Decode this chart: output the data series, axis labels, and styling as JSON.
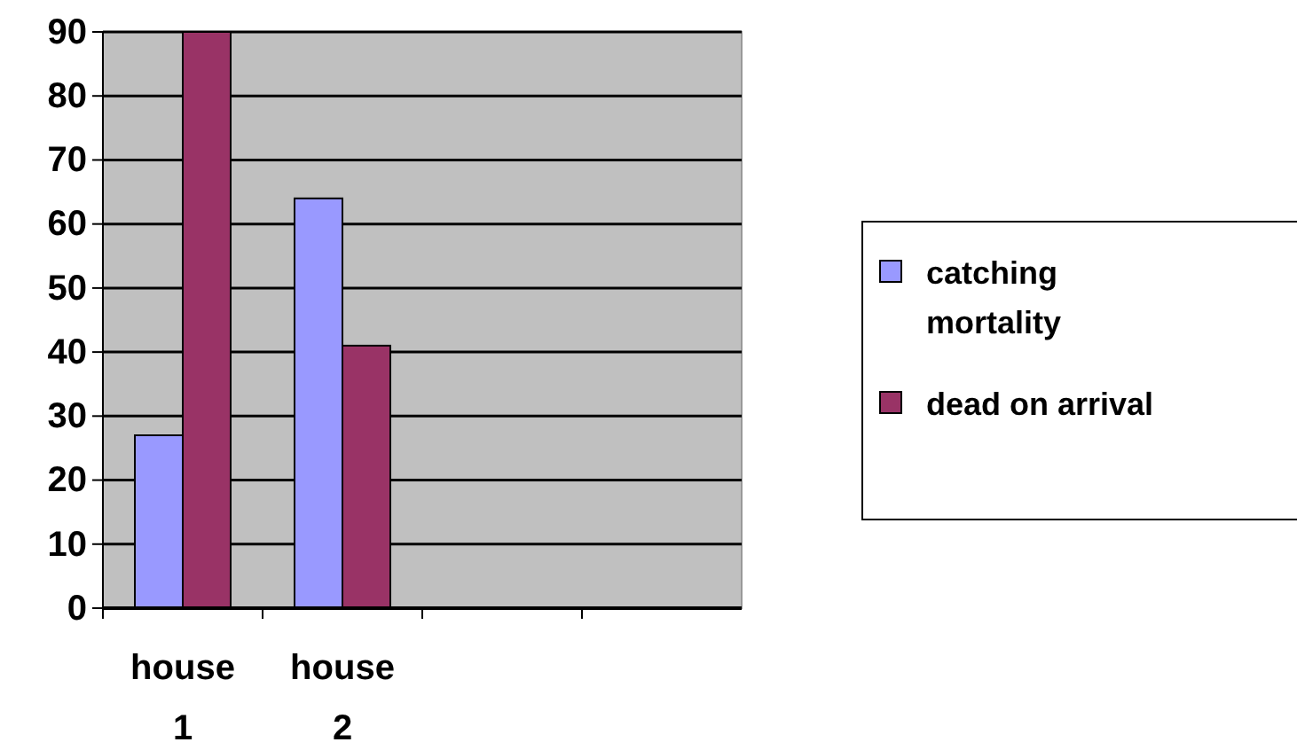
{
  "chart_data": {
    "type": "bar",
    "categories": [
      "house 1",
      "house 2",
      null,
      null
    ],
    "series": [
      {
        "name": "catching mortality",
        "color": "#9999ff",
        "values": [
          27,
          64,
          null,
          null
        ]
      },
      {
        "name": "dead on arrival",
        "color": "#993366",
        "values": [
          90,
          41,
          null,
          null
        ]
      }
    ],
    "ylim": [
      0,
      90
    ],
    "yticks": [
      0,
      10,
      20,
      30,
      40,
      50,
      60,
      70,
      80,
      90
    ],
    "grid": "y",
    "legend": "right"
  }
}
